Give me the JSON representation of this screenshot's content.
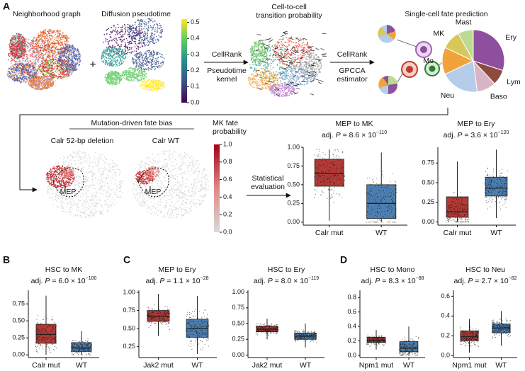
{
  "panel_labels": [
    "A",
    "B",
    "C",
    "D"
  ],
  "pipeline": {
    "neighborhood_title": "Neighborhood graph",
    "plus": "+",
    "pseudotime_title": "Diffusion pseudotime",
    "pseudotime_colorbar": {
      "range": [
        0,
        0.52
      ],
      "ticks": [
        0.5,
        0.4,
        0.3,
        0.2,
        0.1,
        {
          "value": 0,
          "label": "0.0"
        }
      ]
    },
    "kernel_step": [
      "CellRank",
      "Pseudotime",
      "kernel"
    ],
    "transition_title": [
      "Cell-to-cell",
      "transition probability"
    ],
    "estimator_step": [
      "CellRank",
      "GPCCA",
      "estimator"
    ],
    "fate_bias_title": "Mutation-driven fate bias",
    "deletion_title": "Calr 52-bp deletion",
    "wt_title": "Calr WT",
    "mep_labels": [
      "MEP",
      "MEP"
    ],
    "mk_colorbar": {
      "title": [
        "MK fate",
        "probability"
      ],
      "range": [
        0,
        1
      ],
      "ticks": [
        {
          "value": 1,
          "label": "1.0"
        },
        0.8,
        0.6,
        0.4,
        0.2,
        {
          "value": 0,
          "label": "0.0"
        }
      ]
    },
    "evaluation_step": [
      "Statistical",
      "evaluation"
    ]
  },
  "chart_data": [
    {
      "type": "pie",
      "title": "Single-cell fate prediction",
      "categories": [
        "Ery",
        "Lym",
        "Baso",
        "Neu",
        "Mo",
        "MK",
        "Mast"
      ],
      "values": [
        30,
        8,
        10,
        20,
        14,
        10,
        8
      ],
      "colors": [
        "#8e4f9e",
        "#8c4b3c",
        "#d9b4c4",
        "#b3cdea",
        "#f2a23a",
        "#d8c85c",
        "#bcdb92"
      ]
    },
    {
      "type": "box",
      "title": "MEP to MK",
      "subtitle": [
        "adj. ",
        "P",
        " = 8.6 × 10",
        "−110"
      ],
      "categories": [
        "Calr mut",
        "WT"
      ],
      "ylim": [
        -0.04,
        1.0
      ],
      "yticks": [
        {
          "value": 0,
          "label": "0.00"
        },
        0.25,
        {
          "value": 0.5,
          "label": "0.50"
        },
        0.75,
        {
          "value": 1,
          "label": "1.00"
        }
      ],
      "boxes": [
        {
          "color": "#b33a36",
          "whisker_low": 0.02,
          "q1": 0.48,
          "median": 0.65,
          "q3": 0.84,
          "whisker_high": 0.97
        },
        {
          "color": "#4c7fb1",
          "whisker_low": 0.0,
          "q1": 0.05,
          "median": 0.25,
          "q3": 0.5,
          "whisker_high": 0.93
        }
      ]
    },
    {
      "type": "box",
      "title": "MEP to Ery",
      "subtitle": [
        "adj. ",
        "P",
        " = 3.6 × 10",
        "−120"
      ],
      "categories": [
        "Calr mut",
        "WT"
      ],
      "ylim": [
        -0.04,
        0.95
      ],
      "yticks": [
        {
          "value": 0,
          "label": "0.00"
        },
        0.25,
        {
          "value": 0.5,
          "label": "0.50"
        },
        0.75
      ],
      "boxes": [
        {
          "color": "#b33a36",
          "whisker_low": 0.0,
          "q1": 0.06,
          "median": 0.13,
          "q3": 0.32,
          "whisker_high": 0.77
        },
        {
          "color": "#4c7fb1",
          "whisker_low": 0.05,
          "q1": 0.33,
          "median": 0.43,
          "q3": 0.57,
          "whisker_high": 0.92
        }
      ]
    },
    {
      "type": "box",
      "title": "HSC to MK",
      "subtitle": [
        "adj. ",
        "P",
        " = 6.0 × 10",
        "−100"
      ],
      "categories": [
        "Calr mut",
        "WT"
      ],
      "ylim": [
        -0.04,
        0.95
      ],
      "yticks": [
        {
          "value": 0,
          "label": "0.00"
        },
        0.25,
        {
          "value": 0.5,
          "label": "0.50"
        },
        0.75
      ],
      "boxes": [
        {
          "color": "#b33a36",
          "whisker_low": 0.0,
          "q1": 0.17,
          "median": 0.3,
          "q3": 0.45,
          "whisker_high": 0.87
        },
        {
          "color": "#4c7fb1",
          "whisker_low": 0.0,
          "q1": 0.05,
          "median": 0.1,
          "q3": 0.18,
          "whisker_high": 0.35
        }
      ]
    },
    {
      "type": "box",
      "title": "MEP to Ery",
      "subtitle": [
        "adj. ",
        "P",
        " = 1.1 × 10",
        "−28"
      ],
      "categories": [
        "Jak2 mut",
        "WT"
      ],
      "ylim": [
        0.1,
        1.03
      ],
      "yticks": [
        0.25,
        {
          "value": 0.5,
          "label": "0.50"
        },
        0.75,
        {
          "value": 1,
          "label": "1.00"
        }
      ],
      "boxes": [
        {
          "color": "#b33a36",
          "whisker_low": 0.4,
          "q1": 0.6,
          "median": 0.67,
          "q3": 0.75,
          "whisker_high": 0.98
        },
        {
          "color": "#4c7fb1",
          "whisker_low": 0.15,
          "q1": 0.38,
          "median": 0.5,
          "q3": 0.63,
          "whisker_high": 0.95
        }
      ]
    },
    {
      "type": "box",
      "title": "HSC to Ery",
      "subtitle": [
        "adj. ",
        "P",
        " = 8.0 × 10",
        "−119"
      ],
      "categories": [
        "Jak2 mut",
        "WT"
      ],
      "ylim": [
        -0.04,
        1.03
      ],
      "yticks": [
        {
          "value": 0,
          "label": "0.00"
        },
        0.25,
        {
          "value": 0.5,
          "label": "0.50"
        },
        0.75,
        {
          "value": 1,
          "label": "1.00"
        }
      ],
      "boxes": [
        {
          "color": "#b33a36",
          "whisker_low": 0.25,
          "q1": 0.37,
          "median": 0.41,
          "q3": 0.46,
          "whisker_high": 0.58
        },
        {
          "color": "#4c7fb1",
          "whisker_low": 0.12,
          "q1": 0.25,
          "median": 0.3,
          "q3": 0.35,
          "whisker_high": 0.5
        }
      ]
    },
    {
      "type": "box",
      "title": "HSC to Mono",
      "subtitle": [
        "adj. ",
        "P",
        " = 8.3 × 10",
        "−88"
      ],
      "categories": [
        "Npm1 mut",
        "WT"
      ],
      "ylim": [
        -0.03,
        0.9
      ],
      "yticks": [
        {
          "value": 0,
          "label": "0.0"
        },
        0.2,
        0.4,
        0.6,
        0.8
      ],
      "boxes": [
        {
          "color": "#b33a36",
          "whisker_low": 0.08,
          "q1": 0.18,
          "median": 0.21,
          "q3": 0.25,
          "whisker_high": 0.35
        },
        {
          "color": "#4c7fb1",
          "whisker_low": 0.0,
          "q1": 0.05,
          "median": 0.1,
          "q3": 0.19,
          "whisker_high": 0.4
        }
      ]
    },
    {
      "type": "box",
      "title": "HSC to Neu",
      "subtitle": [
        "adj. ",
        "P",
        " = 2.7 × 10",
        "−82"
      ],
      "categories": [
        "Npm1 mut",
        "WT"
      ],
      "ylim": [
        -0.02,
        0.66
      ],
      "yticks": [
        {
          "value": 0,
          "label": "0.0"
        },
        0.2,
        0.4,
        0.6
      ],
      "boxes": [
        {
          "color": "#b33a36",
          "whisker_low": 0.03,
          "q1": 0.15,
          "median": 0.19,
          "q3": 0.25,
          "whisker_high": 0.37
        },
        {
          "color": "#4c7fb1",
          "whisker_low": 0.1,
          "q1": 0.23,
          "median": 0.28,
          "q3": 0.32,
          "whisker_high": 0.45
        }
      ]
    }
  ]
}
